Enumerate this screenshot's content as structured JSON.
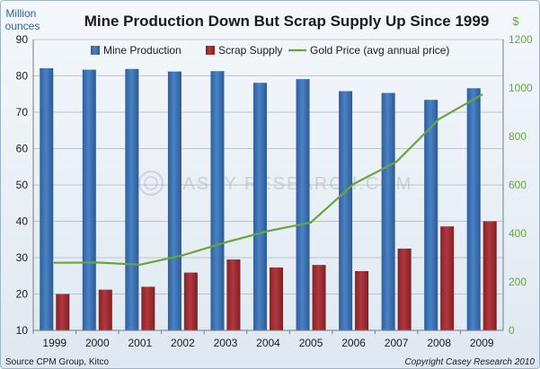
{
  "chart_data": {
    "type": "bar",
    "title": "Mine Production Down But Scrap Supply Up Since 1999",
    "ylabel_left": "Million ounces",
    "ylabel_right": "$",
    "source": "Source CPM Group, Kitco",
    "copyright": "Copyright Casey Research 2010",
    "watermark": "CASEY RESEARCH.COM",
    "categories": [
      "1999",
      "2000",
      "2001",
      "2002",
      "2003",
      "2004",
      "2005",
      "2006",
      "2007",
      "2008",
      "2009"
    ],
    "y_left": {
      "min": 10,
      "max": 90,
      "ticks": [
        "10",
        "20",
        "30",
        "40",
        "50",
        "60",
        "70",
        "80",
        "90"
      ]
    },
    "y_right": {
      "min": 0,
      "max": 1200,
      "ticks": [
        "0",
        "200",
        "400",
        "600",
        "800",
        "1000",
        "1200"
      ]
    },
    "grid": true,
    "legend_position": "top",
    "series": [
      {
        "name": "Mine Production",
        "type": "bar",
        "axis": "left",
        "color": "#3a6fb0",
        "values": [
          82.1,
          81.7,
          81.9,
          81.2,
          81.3,
          78.1,
          79.1,
          75.8,
          75.3,
          73.4,
          76.6
        ]
      },
      {
        "name": "Scrap Supply",
        "type": "bar",
        "axis": "left",
        "color": "#9c2a2e",
        "values": [
          20.0,
          21.2,
          22.0,
          25.9,
          29.5,
          27.3,
          28.0,
          26.3,
          32.5,
          38.6,
          40.0
        ]
      },
      {
        "name": "Gold Price (avg annual price)",
        "type": "line",
        "axis": "right",
        "color": "#6aa53b",
        "values": [
          279,
          280,
          271,
          310,
          363,
          410,
          445,
          604,
          695,
          872,
          972
        ]
      }
    ]
  }
}
